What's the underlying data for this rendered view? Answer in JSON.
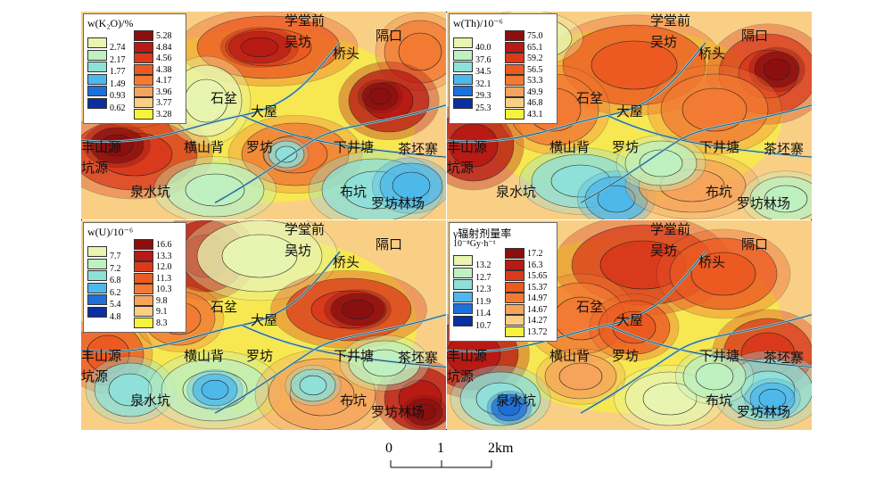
{
  "panels": [
    {
      "legend": {
        "title": "w(K₂O)/%",
        "subtitle": "",
        "cool": [
          "2.74",
          "2.17",
          "1.77",
          "1.49",
          "0.93",
          "0.62"
        ],
        "warm": [
          "5.28",
          "4.84",
          "4.56",
          "4.38",
          "4.17",
          "3.96",
          "3.77",
          "3.28"
        ]
      },
      "places": [
        "学堂前",
        "吴坊",
        "隔口",
        "桥头",
        "石坌",
        "大屋",
        "丰山源",
        "横山背",
        "罗坊",
        "下井塘",
        "茶坯寨",
        "坑源",
        "泉水坑",
        "布坑",
        "罗坊林场"
      ]
    },
    {
      "legend": {
        "title": "w(Th)/10⁻⁶",
        "subtitle": "",
        "cool": [
          "40.0",
          "37.6",
          "34.5",
          "32.1",
          "29.3",
          "25.3"
        ],
        "warm": [
          "75.0",
          "65.1",
          "59.2",
          "56.5",
          "53.3",
          "49.9",
          "46.8",
          "43.1"
        ]
      },
      "places": [
        "学堂前",
        "吴坊",
        "隔口",
        "桥头",
        "石坌",
        "大屋",
        "丰山源",
        "横山背",
        "罗坊",
        "下井塘",
        "茶坯寨",
        "坑源",
        "泉水坑",
        "布坑",
        "罗坊林场"
      ]
    },
    {
      "legend": {
        "title": "w(U)/10⁻⁶",
        "subtitle": "",
        "cool": [
          "7.7",
          "7.2",
          "6.8",
          "6.2",
          "5.4",
          "4.8"
        ],
        "warm": [
          "16.6",
          "13.3",
          "12.0",
          "11.3",
          "10.3",
          "9.8",
          "9.1",
          "8.3"
        ]
      },
      "places": [
        "学堂前",
        "吴坊",
        "隔口",
        "桥头",
        "石坌",
        "大屋",
        "丰山源",
        "横山背",
        "罗坊",
        "下井塘",
        "茶坯寨",
        "坑源",
        "泉水坑",
        "布坑",
        "罗坊林场"
      ]
    },
    {
      "legend": {
        "title": "γ辐射剂量率",
        "subtitle": "10⁻⁸Gy·h⁻¹",
        "cool": [
          "13.2",
          "12.7",
          "12.3",
          "11.9",
          "11.4",
          "10.7"
        ],
        "warm": [
          "17.2",
          "16.3",
          "15.65",
          "15.37",
          "14.97",
          "14.67",
          "14.27",
          "13.72"
        ]
      },
      "places": [
        "学堂前",
        "吴坊",
        "隔口",
        "桥头",
        "石坌",
        "大屋",
        "丰山源",
        "横山背",
        "罗坊",
        "下井塘",
        "茶坯寨",
        "坑源",
        "泉水坑",
        "布坑",
        "罗坊林场"
      ]
    }
  ],
  "scale": {
    "ticks": [
      "0",
      "1",
      "2km"
    ]
  },
  "colors": {
    "cool": [
      "#e8f5b0",
      "#bff0c0",
      "#8fe0d8",
      "#4fb8ea",
      "#1f6fd8",
      "#0a2fa0"
    ],
    "warm": [
      "#8b0f0f",
      "#b81a14",
      "#d93a1c",
      "#ec5a22",
      "#f27a33",
      "#f6a45b",
      "#f9cf86",
      "#f7f23a"
    ]
  }
}
